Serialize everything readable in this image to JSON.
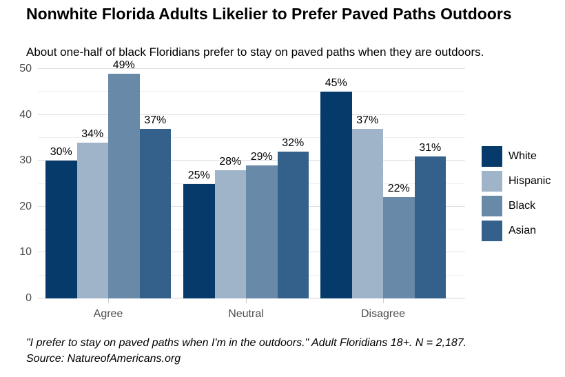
{
  "chart_data": {
    "type": "bar",
    "title": "Nonwhite Florida Adults Likelier to Prefer Paved Paths Outdoors",
    "subtitle": "About one-half of black Floridians prefer to stay on paved paths when they are outdoors.",
    "categories": [
      "Agree",
      "Neutral",
      "Disagree"
    ],
    "series": [
      {
        "name": "White",
        "color": "#063A6B",
        "values": [
          30,
          25,
          45
        ]
      },
      {
        "name": "Hispanic",
        "color": "#9FB3C9",
        "values": [
          34,
          28,
          37
        ]
      },
      {
        "name": "Black",
        "color": "#6989A8",
        "values": [
          49,
          29,
          22
        ]
      },
      {
        "name": "Asian",
        "color": "#34608C",
        "values": [
          37,
          32,
          31
        ]
      }
    ],
    "value_label_suffix": "%",
    "xlabel": "",
    "ylabel": "",
    "ylim": [
      0,
      50
    ],
    "y_major_ticks": [
      0,
      10,
      20,
      30,
      40,
      50
    ],
    "y_minor_step": 5,
    "grid": "horizontal major and minor gridlines on white background",
    "legend_position": "right",
    "caption": "\"I prefer to stay on paved paths when I'm in the outdoors.\" Adult Floridians 18+. N = 2,187.",
    "source": "Source: NatureofAmericans.org"
  },
  "colors": {
    "background": "#FFFFFF",
    "grid_major": "#DEDEDE",
    "grid_minor": "#F0F0F0",
    "axis_line": "#CFCFCF",
    "axis_text": "#4D4D4D",
    "value_label_text": "#000000",
    "title_text": "#000000"
  }
}
